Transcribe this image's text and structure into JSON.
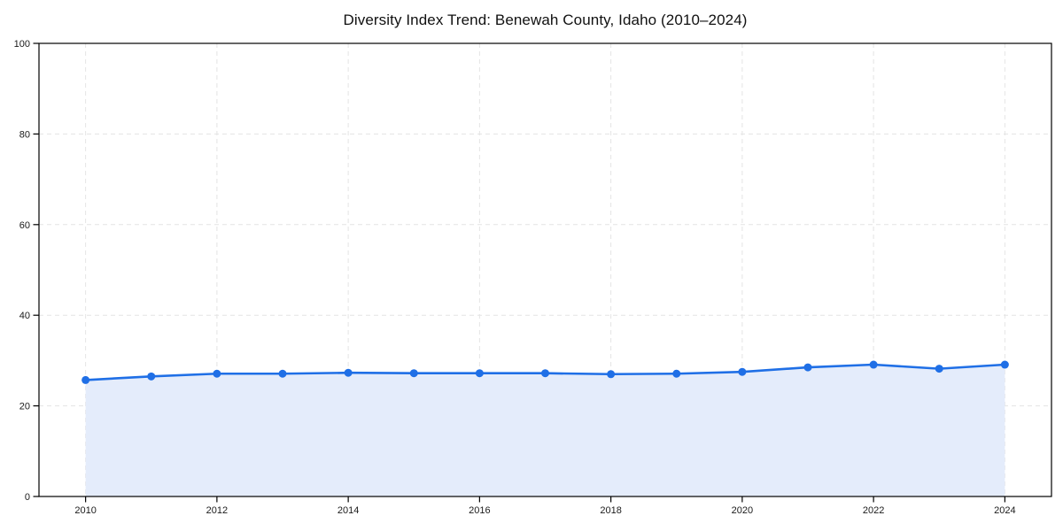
{
  "title": "Diversity Index Trend: Benewah County, Idaho (2010–2024)",
  "chart_data": {
    "type": "area",
    "title": "Diversity Index Trend: Benewah County, Idaho (2010–2024)",
    "series_name": "Diversity Index",
    "x": [
      2010,
      2011,
      2012,
      2013,
      2014,
      2015,
      2016,
      2017,
      2018,
      2019,
      2020,
      2021,
      2022,
      2023,
      2024
    ],
    "values": [
      25.7,
      26.5,
      27.1,
      27.1,
      27.3,
      27.2,
      27.2,
      27.2,
      27.0,
      27.1,
      27.5,
      28.5,
      29.1,
      28.2,
      29.1
    ],
    "xlabel": "",
    "ylabel": "",
    "xlim": [
      2009.29,
      2024.71
    ],
    "ylim": [
      0,
      100
    ],
    "x_ticks": [
      2010,
      2012,
      2014,
      2016,
      2018,
      2020,
      2022,
      2024
    ],
    "y_ticks": [
      0,
      20,
      40,
      60,
      80,
      100
    ],
    "grid": true,
    "legend": "none",
    "colors": {
      "line": "#1f6fe6",
      "marker": "#1f6fe6",
      "fill": "#e4ecfb",
      "grid": "#e4e4e4",
      "axis": "#000000",
      "text": "#1a1a1a",
      "background": "#ffffff"
    }
  }
}
